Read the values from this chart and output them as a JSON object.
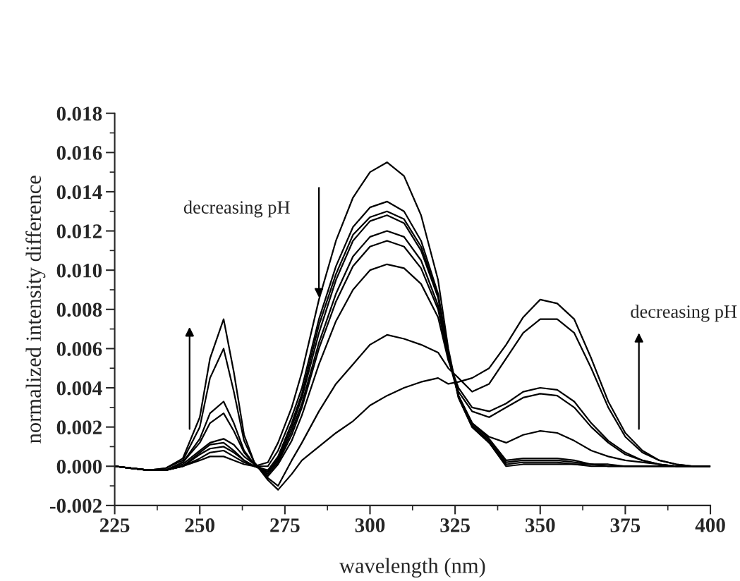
{
  "chart_data": {
    "type": "line",
    "xlabel": "wavelength (nm)",
    "ylabel": "normalized intensity difference",
    "annotations": [
      "decreasing pH",
      "decreasing pH"
    ],
    "x": [
      225,
      230,
      235,
      240,
      245,
      250,
      253,
      257,
      260,
      263,
      266,
      270,
      273,
      277,
      280,
      285,
      290,
      295,
      300,
      305,
      310,
      315,
      320,
      323,
      326,
      330,
      335,
      340,
      345,
      350,
      355,
      360,
      365,
      370,
      375,
      380,
      385,
      390,
      395,
      400
    ],
    "series": [
      {
        "color": "#000000",
        "values": [
          0,
          -0.0001,
          -0.0002,
          -0.0002,
          0,
          0.0003,
          0.0005,
          0.0005,
          0.0003,
          0.0001,
          0,
          0.0002,
          0.0012,
          0.003,
          0.0048,
          0.0085,
          0.0115,
          0.0137,
          0.015,
          0.0155,
          0.0148,
          0.0128,
          0.0095,
          0.006,
          0.0035,
          0.002,
          0.0012,
          0,
          0.0001,
          0.0001,
          0.0001,
          0.0001,
          0,
          0,
          0,
          0,
          0,
          0,
          0,
          0
        ]
      },
      {
        "color": "#000000",
        "values": [
          0,
          -0.0001,
          -0.0002,
          -0.0002,
          0,
          0.0004,
          0.0007,
          0.0008,
          0.0005,
          0.0002,
          0,
          0,
          0.0008,
          0.0025,
          0.004,
          0.0075,
          0.0102,
          0.0122,
          0.0132,
          0.0135,
          0.013,
          0.0115,
          0.0088,
          0.0058,
          0.0035,
          0.002,
          0.0012,
          0.0001,
          0.0002,
          0.0002,
          0.0002,
          0.0001,
          0.0001,
          0,
          0,
          0,
          0,
          0,
          0,
          0
        ]
      },
      {
        "color": "#000000",
        "values": [
          0,
          -0.0001,
          -0.0002,
          -0.0002,
          0,
          0.0006,
          0.0009,
          0.001,
          0.0007,
          0.0003,
          0,
          -0.0002,
          0.0005,
          0.0022,
          0.0037,
          0.0072,
          0.0098,
          0.0118,
          0.0127,
          0.013,
          0.0126,
          0.0112,
          0.0087,
          0.0058,
          0.0036,
          0.0021,
          0.0013,
          0.0002,
          0.0003,
          0.0003,
          0.0003,
          0.0002,
          0.0001,
          0,
          0,
          0,
          0,
          0,
          0,
          0
        ]
      },
      {
        "color": "#000000",
        "values": [
          0,
          -0.0001,
          -0.0002,
          -0.0002,
          0,
          0.0007,
          0.0011,
          0.0012,
          0.0008,
          0.0003,
          0,
          -0.0003,
          0.0004,
          0.002,
          0.0035,
          0.0068,
          0.0095,
          0.0115,
          0.0125,
          0.0128,
          0.0124,
          0.011,
          0.0086,
          0.0057,
          0.0036,
          0.0022,
          0.0014,
          0.0003,
          0.0004,
          0.0004,
          0.0004,
          0.0003,
          0.0001,
          0.0001,
          0,
          0,
          0,
          0,
          0,
          0
        ]
      },
      {
        "color": "#000000",
        "values": [
          0,
          -0.0001,
          -0.0002,
          -0.0002,
          0.0001,
          0.0008,
          0.0012,
          0.0014,
          0.0011,
          0.0005,
          0.0001,
          -0.0003,
          0.0003,
          0.0018,
          0.0032,
          0.0063,
          0.0088,
          0.0107,
          0.0117,
          0.012,
          0.0117,
          0.0105,
          0.0082,
          0.0055,
          0.0036,
          0.0022,
          0.0015,
          0.0012,
          0.0016,
          0.0018,
          0.0017,
          0.0013,
          0.0008,
          0.0005,
          0.0003,
          0.0002,
          0.0001,
          0,
          0,
          0
        ]
      },
      {
        "color": "#000000",
        "values": [
          0,
          -0.0001,
          -0.0002,
          -0.0002,
          0.0002,
          0.0012,
          0.0022,
          0.0027,
          0.0018,
          0.0007,
          0.0001,
          -0.0004,
          0.0002,
          0.0016,
          0.003,
          0.006,
          0.0084,
          0.0102,
          0.0112,
          0.0115,
          0.0112,
          0.0101,
          0.008,
          0.0055,
          0.0038,
          0.0028,
          0.0025,
          0.003,
          0.0035,
          0.0037,
          0.0036,
          0.003,
          0.002,
          0.0012,
          0.0006,
          0.0003,
          0.0001,
          0,
          0,
          0
        ]
      },
      {
        "color": "#000000",
        "values": [
          0,
          -0.0001,
          -0.0002,
          -0.0002,
          0.0002,
          0.0014,
          0.0027,
          0.0033,
          0.0022,
          0.0008,
          0.0001,
          -0.0005,
          0.0001,
          0.0013,
          0.0026,
          0.0052,
          0.0074,
          0.009,
          0.01,
          0.0103,
          0.0101,
          0.0093,
          0.0076,
          0.0054,
          0.004,
          0.003,
          0.0028,
          0.0032,
          0.0038,
          0.004,
          0.0039,
          0.0033,
          0.0022,
          0.0013,
          0.0007,
          0.0003,
          0.0001,
          0,
          0,
          0
        ]
      },
      {
        "color": "#000000",
        "values": [
          0,
          -0.0001,
          -0.0002,
          -0.0001,
          0.0003,
          0.002,
          0.0045,
          0.006,
          0.0038,
          0.0013,
          0.0002,
          -0.0006,
          -0.001,
          0.0003,
          0.0012,
          0.0028,
          0.0042,
          0.0052,
          0.0062,
          0.0067,
          0.0065,
          0.0062,
          0.0058,
          0.005,
          0.0045,
          0.0038,
          0.0042,
          0.0055,
          0.0068,
          0.0075,
          0.0075,
          0.0068,
          0.005,
          0.003,
          0.0015,
          0.0007,
          0.0003,
          0.0001,
          0,
          0
        ]
      },
      {
        "color": "#000000",
        "values": [
          0,
          -0.0001,
          -0.0002,
          -0.0001,
          0.0004,
          0.0025,
          0.0055,
          0.0075,
          0.0048,
          0.0016,
          0.0002,
          -0.0007,
          -0.0012,
          -0.0004,
          0.0003,
          0.001,
          0.0017,
          0.0023,
          0.0031,
          0.0036,
          0.004,
          0.0043,
          0.0045,
          0.0042,
          0.0043,
          0.0045,
          0.005,
          0.0062,
          0.0076,
          0.0085,
          0.0083,
          0.0075,
          0.0055,
          0.0033,
          0.0017,
          0.0008,
          0.0003,
          0.0001,
          0,
          0
        ]
      }
    ],
    "xlim": [
      225,
      400
    ],
    "xticks": [
      225,
      250,
      275,
      300,
      325,
      350,
      375,
      400
    ],
    "ylim": [
      -0.002,
      0.018
    ],
    "yticks": [
      {
        "value": -0.002,
        "label": "-0.002"
      },
      {
        "value": 0,
        "label": "0.000"
      },
      {
        "value": 0.002,
        "label": "0.002"
      },
      {
        "value": 0.004,
        "label": "0.004"
      },
      {
        "value": 0.006,
        "label": "0.006"
      },
      {
        "value": 0.008,
        "label": "0.008"
      },
      {
        "value": 0.01,
        "label": "0.010"
      },
      {
        "value": 0.012,
        "label": "0.012"
      },
      {
        "value": 0.014,
        "label": "0.014"
      },
      {
        "value": 0.016,
        "label": "0.016"
      },
      {
        "value": 0.018,
        "label": "0.018"
      }
    ],
    "marker": "none",
    "line_style": "solid"
  }
}
